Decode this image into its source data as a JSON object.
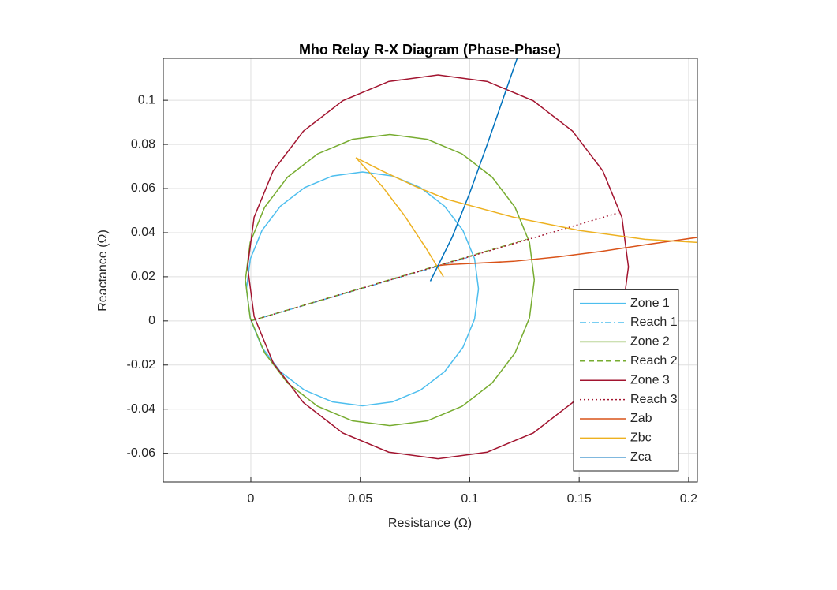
{
  "chart_data": {
    "type": "line",
    "title": "Mho Relay R-X Diagram (Phase-Phase)",
    "x_label": "Resistance (Ω)",
    "y_label": "Reactance (Ω)",
    "xlim": [
      -0.04,
      0.204
    ],
    "ylim": [
      -0.073,
      0.119
    ],
    "xticks": [
      0,
      0.05,
      0.1,
      0.15,
      0.2
    ],
    "yticks": [
      -0.06,
      -0.04,
      -0.02,
      0,
      0.02,
      0.04,
      0.06,
      0.08,
      0.1
    ],
    "grid": true,
    "legend": "southeast",
    "series": [
      {
        "name": "Zone 1",
        "color": "#4dbeee",
        "style": "solid",
        "x": [
          0.104,
          0.1022,
          0.0969,
          0.0885,
          0.0775,
          0.0647,
          0.051,
          0.0373,
          0.0245,
          0.0135,
          0.0051,
          -0.0002,
          -0.002,
          -0.0002,
          0.0051,
          0.0135,
          0.0245,
          0.0373,
          0.051,
          0.0647,
          0.0775,
          0.0885,
          0.0969,
          0.1022,
          0.104
        ],
        "values": [
          0.0145,
          0.0282,
          0.041,
          0.052,
          0.0604,
          0.0657,
          0.0675,
          0.0657,
          0.0604,
          0.052,
          0.041,
          0.0282,
          0.0145,
          0.0008,
          -0.012,
          -0.023,
          -0.0314,
          -0.0367,
          -0.0385,
          -0.0367,
          -0.0314,
          -0.023,
          -0.012,
          0.0008,
          0.0145
        ]
      },
      {
        "name": "Reach 1",
        "color": "#4dbeee",
        "style": "dashdot",
        "x": [
          0,
          0.1
        ],
        "values": [
          0,
          0.029
        ]
      },
      {
        "name": "Zone 2",
        "color": "#77ac30",
        "style": "solid",
        "x": [
          0.1295,
          0.1273,
          0.1207,
          0.1102,
          0.0965,
          0.0806,
          0.0635,
          0.0464,
          0.0305,
          0.0168,
          0.0063,
          -0.0003,
          -0.0025,
          -0.0003,
          0.0063,
          0.0168,
          0.0305,
          0.0464,
          0.0635,
          0.0806,
          0.0965,
          0.1102,
          0.1207,
          0.1273,
          0.1295
        ],
        "values": [
          0.0185,
          0.0356,
          0.0515,
          0.0652,
          0.0757,
          0.0823,
          0.0845,
          0.0823,
          0.0757,
          0.0652,
          0.0515,
          0.0356,
          0.0185,
          0.0014,
          -0.0145,
          -0.0282,
          -0.0387,
          -0.0453,
          -0.0475,
          -0.0453,
          -0.0387,
          -0.0282,
          -0.0145,
          0.0014,
          0.0185
        ]
      },
      {
        "name": "Reach 2",
        "color": "#77ac30",
        "style": "dashed",
        "x": [
          0,
          0.126
        ],
        "values": [
          0,
          0.037
        ]
      },
      {
        "name": "Zone 3",
        "color": "#a2142f",
        "style": "solid",
        "x": [
          0.1725,
          0.1695,
          0.1608,
          0.147,
          0.129,
          0.108,
          0.0855,
          0.063,
          0.042,
          0.024,
          0.0102,
          0.0015,
          -0.0015,
          0.0015,
          0.0102,
          0.024,
          0.042,
          0.063,
          0.0855,
          0.108,
          0.129,
          0.147,
          0.1608,
          0.1695,
          0.1725
        ],
        "values": [
          0.0245,
          0.047,
          0.068,
          0.086,
          0.0998,
          0.1085,
          0.1115,
          0.1085,
          0.0998,
          0.086,
          0.068,
          0.047,
          0.0245,
          0.002,
          -0.019,
          -0.037,
          -0.0508,
          -0.0595,
          -0.0625,
          -0.0595,
          -0.0508,
          -0.037,
          -0.019,
          0.002,
          0.0245
        ]
      },
      {
        "name": "Reach 3",
        "color": "#a2142f",
        "style": "dotted",
        "x": [
          0,
          0.168
        ],
        "values": [
          0,
          0.049
        ]
      },
      {
        "name": "Zab",
        "color": "#d95319",
        "style": "solid",
        "x": [
          0.085,
          0.09,
          0.1,
          0.12,
          0.14,
          0.16,
          0.18,
          0.205
        ],
        "values": [
          0.025,
          0.0255,
          0.026,
          0.027,
          0.029,
          0.0315,
          0.0345,
          0.038
        ]
      },
      {
        "name": "Zbc",
        "color": "#edb120",
        "style": "solid",
        "x": [
          0.088,
          0.08,
          0.07,
          0.06,
          0.048,
          0.06,
          0.075,
          0.09,
          0.12,
          0.15,
          0.18,
          0.205
        ],
        "values": [
          0.02,
          0.033,
          0.048,
          0.061,
          0.074,
          0.068,
          0.061,
          0.055,
          0.047,
          0.041,
          0.037,
          0.0355
        ]
      },
      {
        "name": "Zca",
        "color": "#0072bd",
        "style": "solid",
        "x": [
          0.082,
          0.086,
          0.092,
          0.1,
          0.108,
          0.115,
          0.122
        ],
        "values": [
          0.018,
          0.026,
          0.038,
          0.058,
          0.08,
          0.1,
          0.12
        ]
      }
    ]
  }
}
